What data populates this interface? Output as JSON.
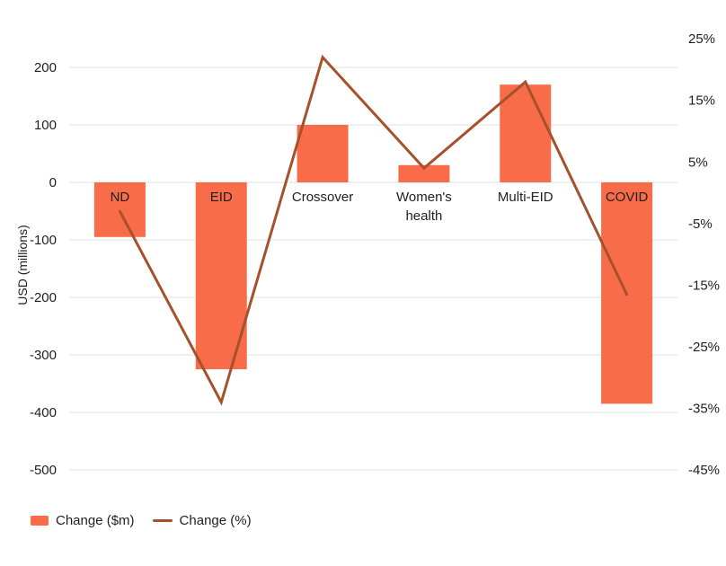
{
  "colors": {
    "bar": "#F96C4A",
    "line": "#A5512B",
    "grid": "#E7E7E7",
    "text": "#1F1F1F"
  },
  "chart_data": {
    "type": "bar+line combo, dual axis",
    "categories": [
      "ND",
      "EID",
      "Crossover",
      "Women's\nhealth",
      "Multi-EID",
      "COVID"
    ],
    "series": [
      {
        "name": "Change ($m)",
        "type": "bar",
        "axis": "left",
        "values": [
          -95,
          -325,
          100,
          30,
          170,
          -385
        ]
      },
      {
        "name": "Change (%)",
        "type": "line",
        "axis": "right",
        "values": [
          -3,
          -34,
          22,
          4,
          18,
          -16.5
        ]
      }
    ],
    "left_axis_label": "USD (millions)",
    "left_ticks": [
      200,
      100,
      0,
      -100,
      -200,
      -300,
      -400,
      -500
    ],
    "right_ticks_pct": [
      25,
      15,
      5,
      -5,
      -15,
      -25,
      -35,
      -45
    ],
    "left_ylim": [
      -500,
      220
    ],
    "right_ylim_pct": [
      -45,
      25
    ],
    "grid": true,
    "legend_position": "bottom-left"
  }
}
